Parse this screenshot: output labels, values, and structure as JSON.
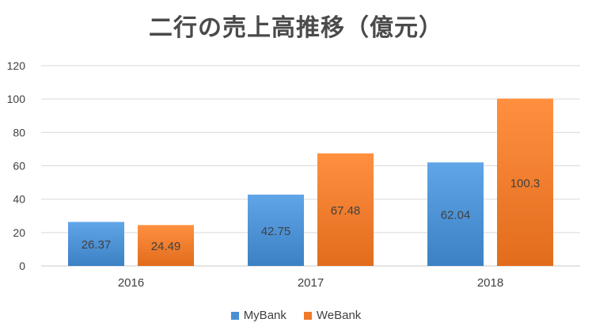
{
  "chart_data": {
    "type": "bar",
    "title": "二行の売上高推移（億元）",
    "categories": [
      "2016",
      "2017",
      "2018"
    ],
    "series": [
      {
        "name": "MyBank",
        "values": [
          26.37,
          42.75,
          62.04
        ],
        "value_labels": [
          "26.37",
          "42.75",
          "62.04"
        ],
        "color": "#4a8fd2"
      },
      {
        "name": "WeBank",
        "values": [
          24.49,
          67.48,
          100.3
        ],
        "value_labels": [
          "24.49",
          "67.48",
          "100.3"
        ],
        "color": "#ef7a2a"
      }
    ],
    "ylim": [
      0,
      120
    ],
    "yticks": [
      0,
      20,
      40,
      60,
      80,
      100,
      120
    ],
    "grid": true,
    "legend_position": "bottom",
    "xlabel": "",
    "ylabel": ""
  }
}
